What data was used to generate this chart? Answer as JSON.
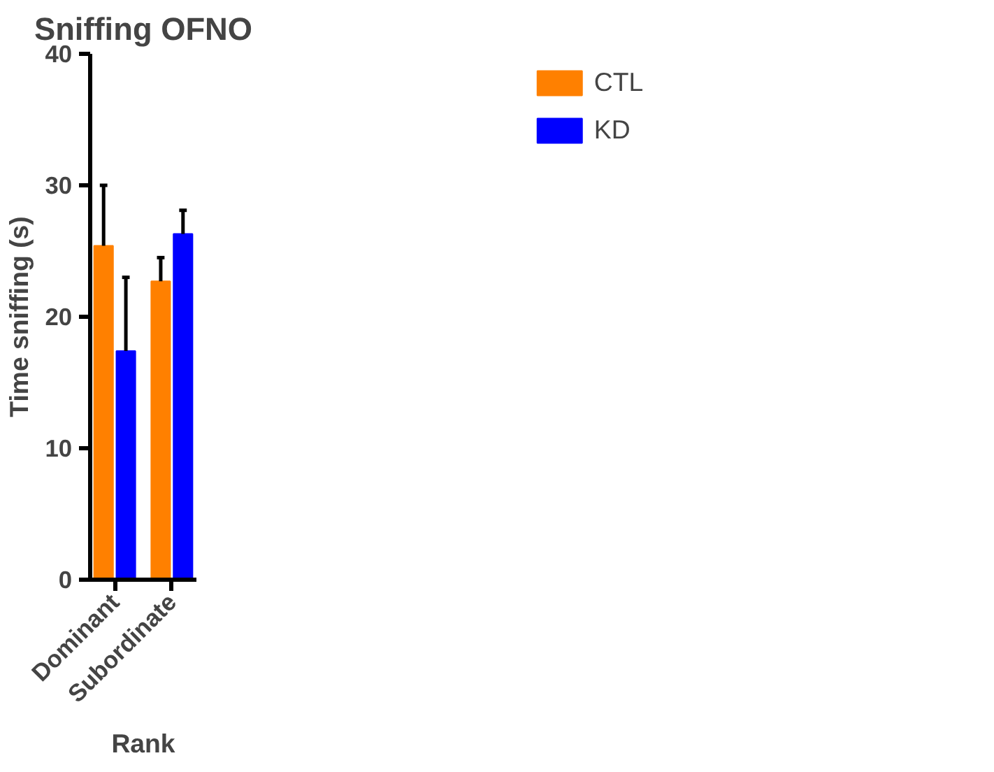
{
  "chart_data": {
    "type": "bar",
    "title": "Sniffing OFNO",
    "xlabel": "Rank",
    "ylabel": "Time sniffing (s)",
    "categories": [
      "Dominant",
      "Subordinate"
    ],
    "series": [
      {
        "name": "CTL",
        "color": "#ff8000",
        "values": [
          25.4,
          22.7
        ],
        "errors": [
          [
            25.4,
            30.0
          ],
          [
            22.7,
            24.5
          ]
        ]
      },
      {
        "name": "KD",
        "color": "#0000ff",
        "values": [
          17.4,
          26.3
        ],
        "errors": [
          [
            17.4,
            23.0
          ],
          [
            26.3,
            28.1
          ]
        ]
      }
    ],
    "ylim": [
      0,
      40
    ],
    "yticks": [
      0,
      10,
      20,
      30,
      40
    ],
    "grid": false,
    "legend": "top right"
  }
}
